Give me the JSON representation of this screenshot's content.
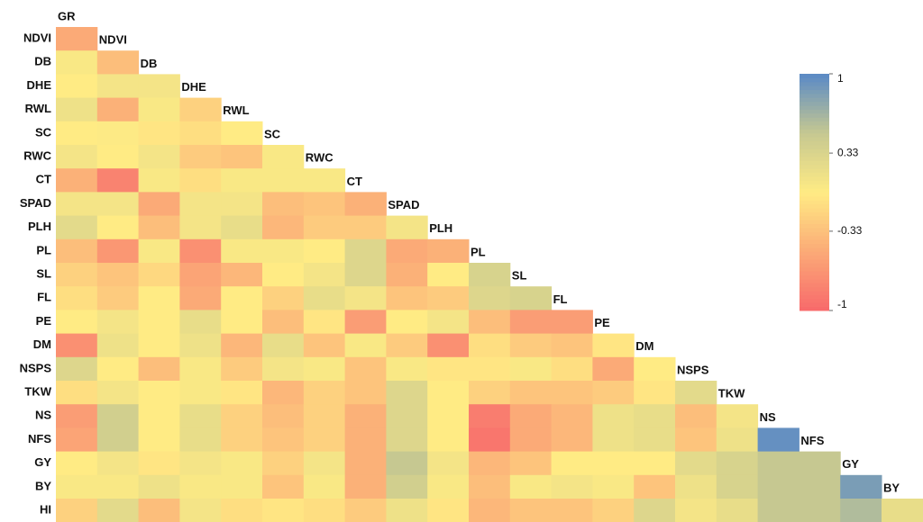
{
  "chart_data": {
    "type": "heatmap",
    "x_categories": [
      "GR",
      "NDVI",
      "DB",
      "DHE",
      "RWL",
      "SC",
      "RWC",
      "CT",
      "SPAD",
      "PLH",
      "PL",
      "SL",
      "FL",
      "PE",
      "DM",
      "NSPS",
      "TKW",
      "NS",
      "NFS",
      "GY",
      "BY"
    ],
    "y_categories": [
      "NDVI",
      "DB",
      "DHE",
      "RWL",
      "SC",
      "RWC",
      "CT",
      "SPAD",
      "PLH",
      "PL",
      "SL",
      "FL",
      "PE",
      "DM",
      "NSPS",
      "TKW",
      "NS",
      "NFS",
      "GY",
      "BY",
      "HI"
    ],
    "values": [
      [
        -0.5
      ],
      [
        0.05,
        -0.35
      ],
      [
        0,
        0.1,
        0.1
      ],
      [
        0.15,
        -0.45,
        0.05,
        -0.2
      ],
      [
        0,
        0.02,
        -0.05,
        -0.1,
        0
      ],
      [
        0.1,
        0,
        0.1,
        -0.25,
        -0.3,
        0.05
      ],
      [
        -0.45,
        -0.8,
        0.05,
        -0.1,
        0.05,
        0.05,
        0.05
      ],
      [
        0.1,
        0.1,
        -0.5,
        0.1,
        0.1,
        -0.35,
        -0.3,
        -0.45
      ],
      [
        0.25,
        0,
        -0.35,
        0.1,
        0.2,
        -0.4,
        -0.25,
        -0.25,
        0.1
      ],
      [
        -0.35,
        -0.65,
        0.05,
        -0.7,
        0.05,
        0.05,
        0,
        0.3,
        -0.5,
        -0.45
      ],
      [
        -0.2,
        -0.3,
        -0.15,
        -0.55,
        -0.4,
        0,
        0.1,
        0.3,
        -0.45,
        0,
        0.35
      ],
      [
        -0.1,
        -0.25,
        0,
        -0.5,
        0,
        -0.2,
        0.2,
        0.1,
        -0.3,
        -0.25,
        0.3,
        0.35
      ],
      [
        0,
        0.1,
        0,
        0.2,
        0,
        -0.35,
        -0.05,
        -0.6,
        0,
        0.1,
        -0.35,
        -0.6,
        -0.6
      ],
      [
        -0.7,
        0.15,
        0,
        0.15,
        -0.4,
        0.2,
        -0.3,
        0.05,
        -0.25,
        -0.7,
        -0.1,
        -0.25,
        -0.3,
        -0.05
      ],
      [
        0.3,
        0,
        -0.35,
        0.05,
        -0.25,
        0.1,
        0.05,
        -0.3,
        0.05,
        -0.05,
        -0.05,
        0.05,
        -0.1,
        -0.5,
        0
      ],
      [
        -0.1,
        0.1,
        0,
        0.05,
        -0.05,
        -0.4,
        -0.2,
        -0.3,
        0.3,
        0,
        -0.2,
        -0.3,
        -0.3,
        -0.25,
        -0.05,
        0.25
      ],
      [
        -0.6,
        0.4,
        0,
        0.2,
        -0.2,
        -0.35,
        -0.2,
        -0.45,
        0.3,
        0,
        -0.85,
        -0.5,
        -0.4,
        0.15,
        0.2,
        -0.35,
        0.1
      ],
      [
        -0.55,
        0.4,
        0,
        0.2,
        -0.2,
        -0.3,
        -0.2,
        -0.45,
        0.3,
        0,
        -0.9,
        -0.5,
        -0.4,
        0.15,
        0.2,
        -0.3,
        0.15,
        0.95
      ],
      [
        0,
        0.1,
        -0.05,
        0.1,
        0.05,
        -0.2,
        0.1,
        -0.45,
        0.5,
        0.1,
        -0.4,
        -0.3,
        0,
        0,
        0,
        0.25,
        0.35,
        0.5,
        0.5
      ],
      [
        0.05,
        0.05,
        0.15,
        0.05,
        0.05,
        -0.3,
        0.05,
        -0.45,
        0.4,
        0.05,
        -0.35,
        0.05,
        0.1,
        0.05,
        -0.3,
        0.15,
        0.35,
        0.5,
        0.5,
        0.85
      ],
      [
        -0.2,
        0.25,
        -0.35,
        0.1,
        -0.1,
        -0.05,
        -0.1,
        -0.25,
        0.15,
        -0.05,
        -0.4,
        -0.3,
        -0.3,
        -0.2,
        0.3,
        0.1,
        0.2,
        0.5,
        0.5,
        0.6,
        0.2
      ]
    ],
    "clim": [
      -1,
      1
    ],
    "colorscale": [
      "#f8696b",
      "#fbaa77",
      "#ffeb84",
      "#c6c891",
      "#5a8ac6"
    ],
    "colorbar_ticks": [
      1,
      0.33,
      -0.33,
      -1
    ]
  }
}
